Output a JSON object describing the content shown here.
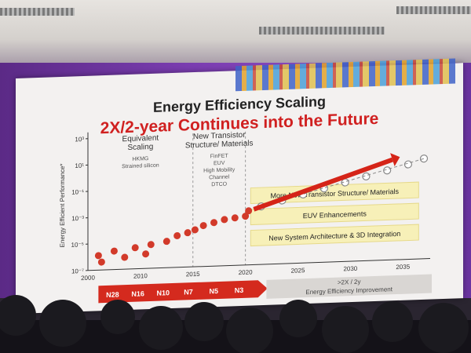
{
  "slide": {
    "title": "Energy Efficiency Scaling",
    "subtitle": "2X/2-year Continues into the Future",
    "colors": {
      "accent": "#d02020",
      "brand_band": "#7a3db0",
      "banner": "#f7f0b8",
      "node_bar": "#d42a1e"
    }
  },
  "chart_data": {
    "type": "scatter",
    "ylabel": "Energy Efficient Performance*",
    "ylim": [
      "10^-7",
      "10^3"
    ],
    "y_ticks": [
      "10³",
      "10¹",
      "10⁻¹",
      "10⁻³",
      "10⁻⁵",
      "10⁻⁷"
    ],
    "x_ticks": [
      "2000",
      "2010",
      "2015",
      "2020",
      "2025",
      "2030",
      "2035"
    ],
    "xlim": [
      2005,
      2037
    ],
    "eras": [
      {
        "title_lines": [
          "Equivalent",
          "Scaling"
        ],
        "items": [
          "HKMG",
          "Strained silicon"
        ]
      },
      {
        "title_lines": [
          "New Transistor",
          "Structure/ Materials"
        ],
        "items": [
          "FinFET",
          "EUV",
          "High Mobility",
          "Channel",
          "DTCO"
        ]
      }
    ],
    "series": [
      {
        "marker": "filled-red",
        "points": [
          [
            2006,
            -5.9
          ],
          [
            2006.3,
            -6.4
          ],
          [
            2007.5,
            -5.6
          ],
          [
            2008.5,
            -6.1
          ],
          [
            2009.5,
            -5.4
          ],
          [
            2010.5,
            -5.9
          ],
          [
            2011,
            -5.2
          ],
          [
            2012.5,
            -5.0
          ],
          [
            2013.5,
            -4.6
          ],
          [
            2014.5,
            -4.4
          ],
          [
            2015.2,
            -4.2
          ],
          [
            2016,
            -3.9
          ],
          [
            2017,
            -3.7
          ],
          [
            2018,
            -3.5
          ],
          [
            2019,
            -3.4
          ],
          [
            2020,
            -3.3
          ],
          [
            2020.3,
            -2.9
          ]
        ]
      },
      {
        "marker": "open-circle",
        "points": [
          [
            2021.5,
            -2.6
          ],
          [
            2023.5,
            -2.2
          ],
          [
            2025.5,
            -1.8
          ],
          [
            2027.5,
            -1.4
          ],
          [
            2029.5,
            -1.0
          ],
          [
            2031.5,
            -0.6
          ],
          [
            2033.5,
            -0.2
          ],
          [
            2035.5,
            0.2
          ],
          [
            2037,
            0.6
          ]
        ]
      }
    ],
    "trend": "red arrow rising from about 2021 to 2034",
    "banners": [
      "More New Transistor Structure/ Materials",
      "EUV Enhancements",
      "New System Architecture & 3D Integration"
    ],
    "nodes": [
      "N28",
      "N16",
      "N10",
      "N7",
      "N5",
      "N3"
    ],
    "improvement_labels": [
      ">2X / 2y",
      "Energy Efficiency Improvement"
    ]
  }
}
